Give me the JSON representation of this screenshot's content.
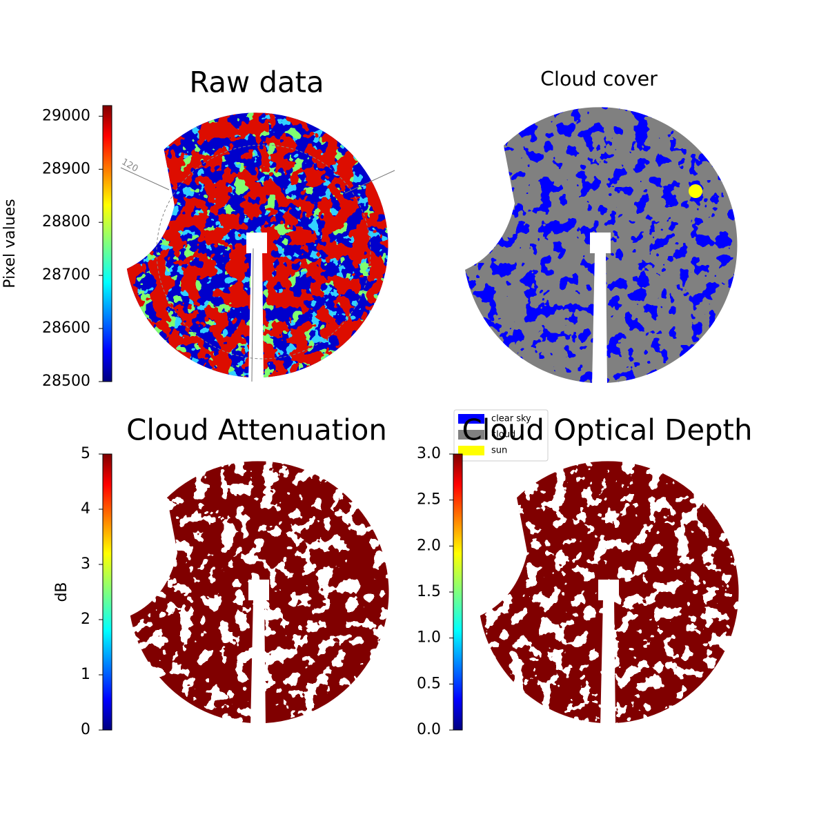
{
  "chart_data": [
    {
      "type": "image",
      "title": "Raw data",
      "colorbar_label": "Pixel values",
      "cmap": "jet",
      "ylim": [
        28500,
        29020
      ],
      "yticks": [
        28500,
        28600,
        28700,
        28800,
        28900,
        29000
      ],
      "polar_labels": [
        "120"
      ]
    },
    {
      "type": "image",
      "title": "Cloud cover",
      "series": [
        {
          "name": "clear sky",
          "color": "#0000ff"
        },
        {
          "name": "cloud",
          "color": "#808080"
        },
        {
          "name": "sun",
          "color": "#ffff00"
        }
      ],
      "legend": "lower left"
    },
    {
      "type": "image",
      "title": "Cloud Attenuation",
      "colorbar_label": "dB",
      "cmap": "jet",
      "color": "#800000",
      "ylim": [
        0,
        5
      ],
      "yticks": [
        0,
        1,
        2,
        3,
        4,
        5
      ]
    },
    {
      "type": "image",
      "title": "Cloud Optical Depth",
      "cmap": "jet",
      "color": "#800000",
      "ylim": [
        0,
        3
      ],
      "yticks": [
        {
          "value": 0,
          "label": "0.0"
        },
        0.5,
        {
          "value": 1,
          "label": "1.0"
        },
        1.5,
        {
          "value": 2,
          "label": "2.0"
        },
        2.5,
        {
          "value": 3,
          "label": "3.0"
        }
      ]
    }
  ]
}
